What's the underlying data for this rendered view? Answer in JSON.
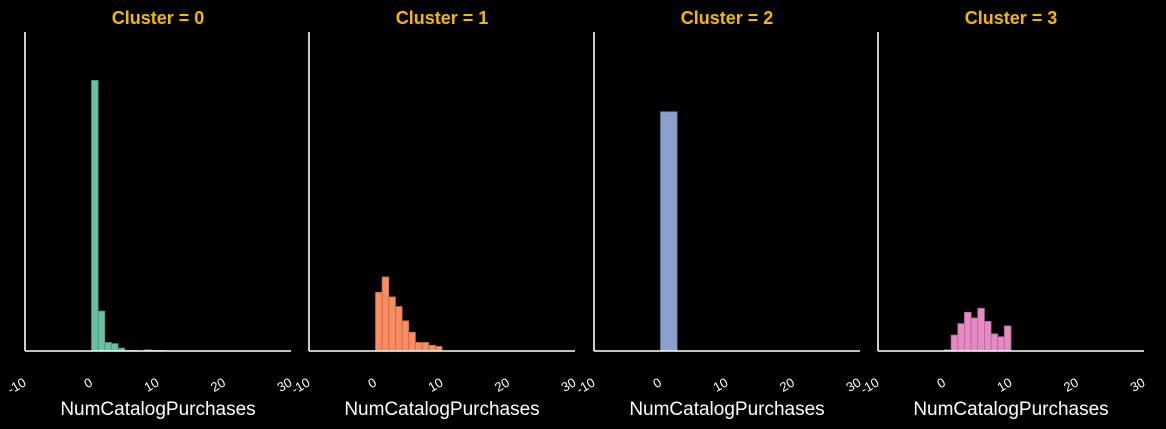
{
  "chart_data": [
    {
      "type": "bar",
      "subtype": "histogram",
      "title": "Cluster = 0",
      "xlabel": "NumCatalogPurchases",
      "ylabel": "",
      "color": "#66c2a5",
      "xlim": [
        -10,
        30
      ],
      "ylim": [
        0,
        560
      ],
      "xticks": [
        "-10",
        "0",
        "10",
        "20",
        "30"
      ],
      "bin_width": 1,
      "bins_x": [
        0,
        1,
        2,
        3,
        4,
        5,
        6,
        7,
        8,
        9,
        10,
        11
      ],
      "values": [
        475,
        70,
        15,
        13,
        5,
        1,
        1,
        0,
        2,
        1,
        1,
        0
      ]
    },
    {
      "type": "bar",
      "subtype": "histogram",
      "title": "Cluster = 1",
      "xlabel": "NumCatalogPurchases",
      "ylabel": "",
      "color": "#fc8d62",
      "xlim": [
        -10,
        30
      ],
      "ylim": [
        0,
        560
      ],
      "xticks": [
        "-10",
        "0",
        "10",
        "20",
        "30"
      ],
      "bin_width": 1,
      "bins_x": [
        0,
        1,
        2,
        3,
        4,
        5,
        6,
        7,
        8,
        9,
        10
      ],
      "values": [
        103,
        130,
        95,
        78,
        53,
        33,
        15,
        15,
        10,
        8,
        0
      ]
    },
    {
      "type": "bar",
      "subtype": "histogram",
      "title": "Cluster = 2",
      "xlabel": "NumCatalogPurchases",
      "ylabel": "",
      "color": "#8da0cb",
      "xlim": [
        -10,
        30
      ],
      "ylim": [
        0,
        560
      ],
      "xticks": [
        "-10",
        "0",
        "10",
        "20",
        "30"
      ],
      "bin_width": 2.5,
      "bins_x": [
        0
      ],
      "values": [
        420
      ]
    },
    {
      "type": "bar",
      "subtype": "histogram",
      "title": "Cluster = 3",
      "xlabel": "NumCatalogPurchases",
      "ylabel": "",
      "color": "#e78ac3",
      "xlim": [
        -10,
        30
      ],
      "ylim": [
        0,
        560
      ],
      "xticks": [
        "-10",
        "0",
        "10",
        "20",
        "30"
      ],
      "bin_width": 1,
      "bins_x": [
        0,
        1,
        2,
        3,
        4,
        5,
        6,
        7,
        8,
        9,
        10
      ],
      "values": [
        2,
        28,
        48,
        68,
        58,
        75,
        52,
        30,
        25,
        44,
        0
      ]
    }
  ]
}
